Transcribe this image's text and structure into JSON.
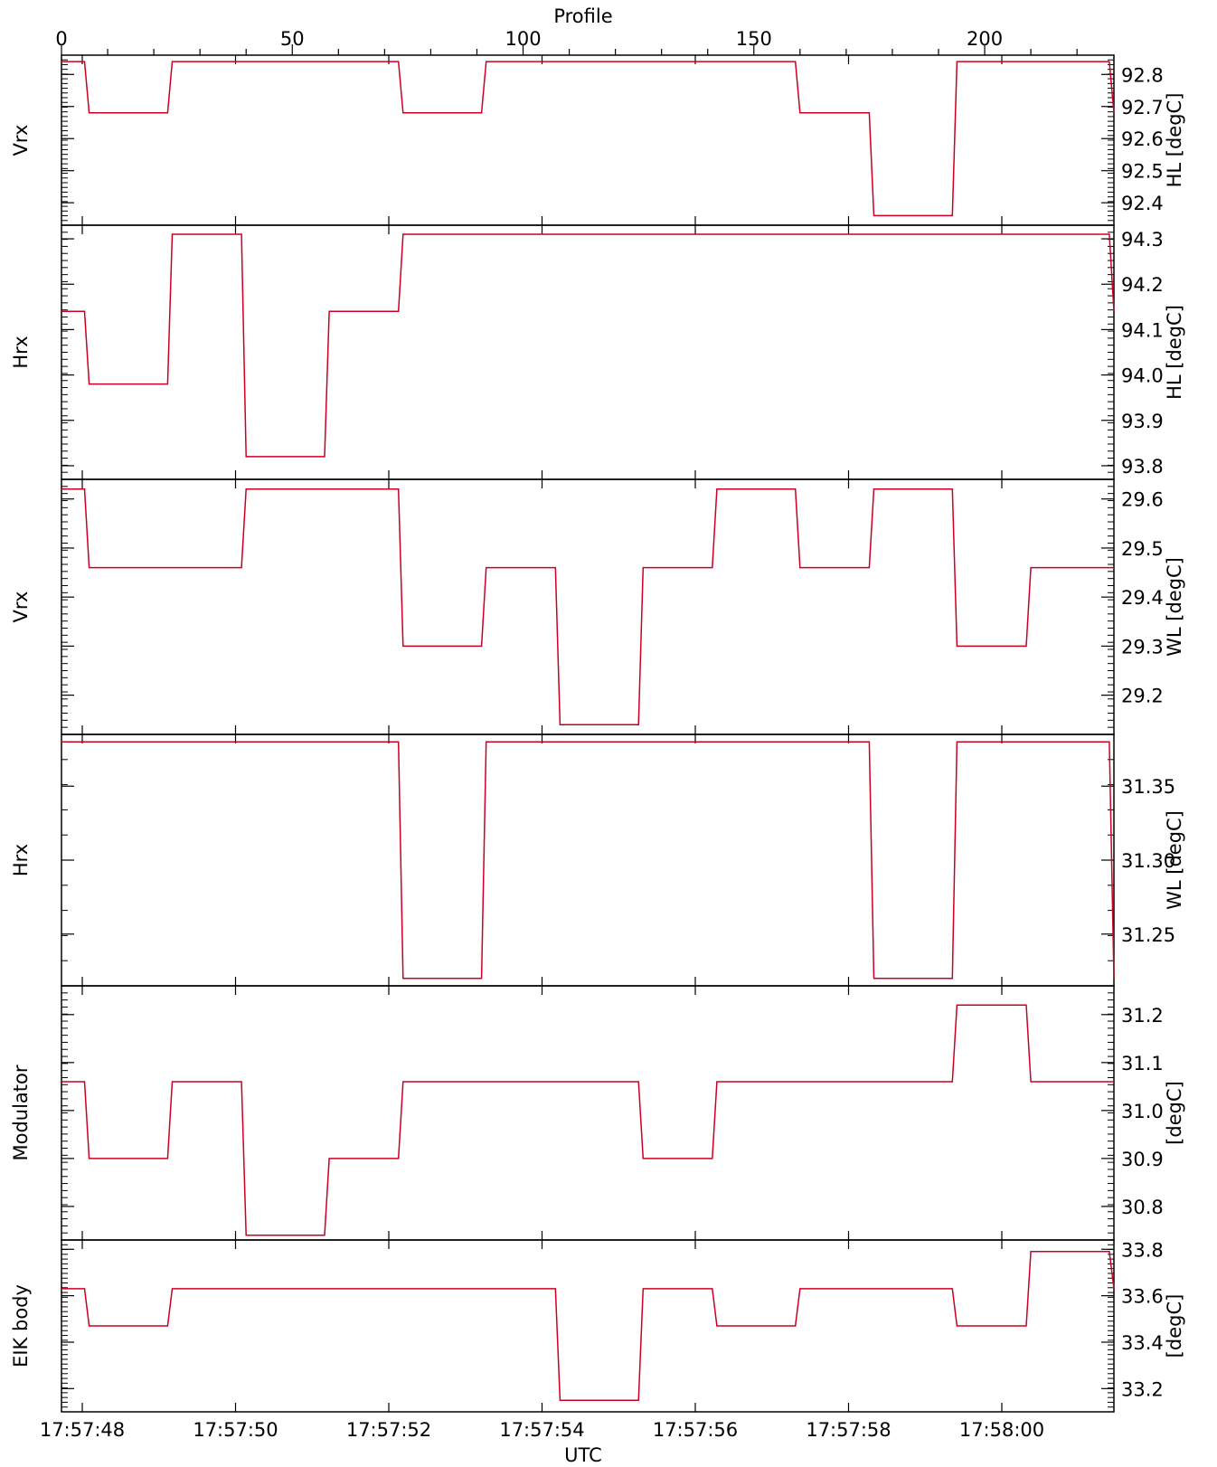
{
  "top_axis": {
    "label": "Profile",
    "ticks": [
      "0",
      "50",
      "100",
      "150",
      "200"
    ],
    "range": [
      0,
      228
    ]
  },
  "bottom_axis": {
    "label": "UTC",
    "ticks": [
      "17:57:48",
      "17:57:50",
      "17:57:52",
      "17:57:54",
      "17:57:56",
      "17:57:58",
      "17:58:00"
    ]
  },
  "colors": {
    "line": "#cc0022",
    "axis": "#000000"
  },
  "chart_data": [
    {
      "type": "line",
      "ylabel_left": "Vrx",
      "ylabel_right": "HL  [degC]",
      "yticks": [
        "92.4",
        "92.5",
        "92.6",
        "92.7",
        "92.8"
      ],
      "ylim": [
        92.33,
        92.86
      ],
      "x": [
        0,
        5,
        6,
        23,
        24,
        73,
        74,
        91,
        92,
        159,
        160,
        175,
        176,
        193,
        194,
        227,
        228
      ],
      "y": [
        92.84,
        92.84,
        92.68,
        92.68,
        92.84,
        92.84,
        92.68,
        92.68,
        92.84,
        92.84,
        92.68,
        92.68,
        92.36,
        92.36,
        92.84,
        92.84,
        92.68
      ]
    },
    {
      "type": "line",
      "ylabel_left": "Hrx",
      "ylabel_right": "HL  [degC]",
      "yticks": [
        "93.8",
        "93.9",
        "94.0",
        "94.1",
        "94.2",
        "94.3"
      ],
      "ylim": [
        93.77,
        94.33
      ],
      "x": [
        0,
        5,
        6,
        23,
        24,
        39,
        40,
        57,
        58,
        73,
        74,
        227,
        228
      ],
      "y": [
        94.14,
        94.14,
        93.98,
        93.98,
        94.31,
        94.31,
        93.82,
        93.82,
        94.14,
        94.14,
        94.31,
        94.31,
        94.14
      ]
    },
    {
      "type": "line",
      "ylabel_left": "Vrx",
      "ylabel_right": "WL  [degC]",
      "yticks": [
        "29.2",
        "29.3",
        "29.4",
        "29.5",
        "29.6"
      ],
      "ylim": [
        29.12,
        29.64
      ],
      "x": [
        0,
        5,
        6,
        39,
        40,
        73,
        74,
        91,
        92,
        107,
        108,
        125,
        126,
        141,
        142,
        159,
        160,
        175,
        176,
        193,
        194,
        209,
        210,
        228
      ],
      "y": [
        29.62,
        29.62,
        29.46,
        29.46,
        29.62,
        29.62,
        29.3,
        29.3,
        29.46,
        29.46,
        29.14,
        29.14,
        29.46,
        29.46,
        29.62,
        29.62,
        29.46,
        29.46,
        29.62,
        29.62,
        29.3,
        29.3,
        29.46,
        29.46
      ]
    },
    {
      "type": "line",
      "ylabel_left": "Hrx",
      "ylabel_right": "WL  [degC]",
      "yticks": [
        "31.25",
        "31.30",
        "31.35"
      ],
      "ylim": [
        31.215,
        31.385
      ],
      "x": [
        0,
        73,
        74,
        91,
        92,
        175,
        176,
        193,
        194,
        227,
        228
      ],
      "y": [
        31.38,
        31.38,
        31.22,
        31.22,
        31.38,
        31.38,
        31.22,
        31.22,
        31.38,
        31.38,
        31.22
      ]
    },
    {
      "type": "line",
      "ylabel_left": "Modulator",
      "ylabel_right": "[degC]",
      "yticks": [
        "30.8",
        "30.9",
        "31.0",
        "31.1",
        "31.2"
      ],
      "ylim": [
        30.73,
        31.26
      ],
      "x": [
        0,
        5,
        6,
        23,
        24,
        39,
        40,
        57,
        58,
        73,
        74,
        125,
        126,
        141,
        142,
        193,
        194,
        209,
        210,
        228
      ],
      "y": [
        31.06,
        31.06,
        30.9,
        30.9,
        31.06,
        31.06,
        30.74,
        30.74,
        30.9,
        30.9,
        31.06,
        31.06,
        30.9,
        30.9,
        31.06,
        31.06,
        31.22,
        31.22,
        31.06,
        31.06
      ]
    },
    {
      "type": "line",
      "ylabel_left": "EIK  body",
      "ylabel_right": "[degC]",
      "yticks": [
        "33.2",
        "33.4",
        "33.6",
        "33.8"
      ],
      "ylim": [
        33.1,
        33.84
      ],
      "x": [
        0,
        5,
        6,
        23,
        24,
        107,
        108,
        125,
        126,
        141,
        142,
        159,
        160,
        193,
        194,
        209,
        210,
        227,
        228
      ],
      "y": [
        33.63,
        33.63,
        33.47,
        33.47,
        33.63,
        33.63,
        33.15,
        33.15,
        33.63,
        33.63,
        33.47,
        33.47,
        33.63,
        33.63,
        33.47,
        33.47,
        33.79,
        33.79,
        33.63
      ]
    }
  ]
}
